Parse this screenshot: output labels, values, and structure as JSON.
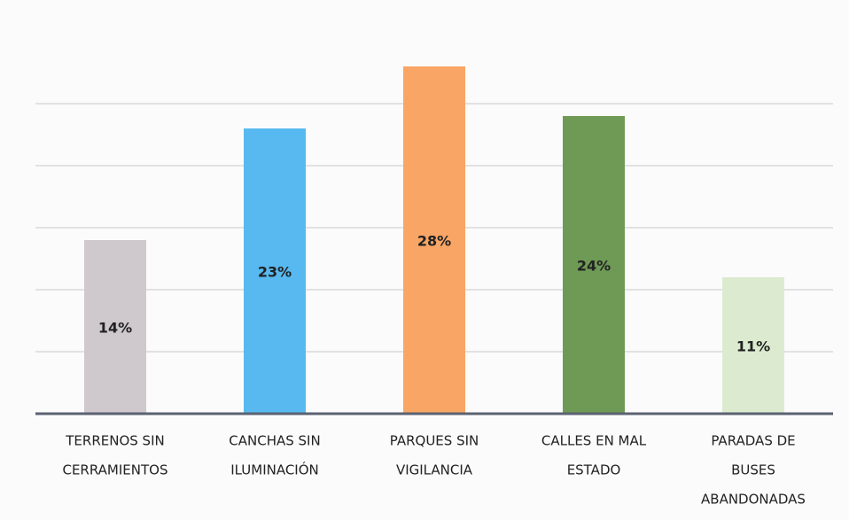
{
  "chart_data": {
    "type": "bar",
    "categories": [
      [
        "TERRENOS SIN",
        "CERRAMIENTOS"
      ],
      [
        "CANCHAS SIN",
        "ILUMINACIÓN"
      ],
      [
        "PARQUES SIN",
        "VIGILANCIA"
      ],
      [
        "CALLES EN MAL",
        "ESTADO"
      ],
      [
        "PARADAS DE",
        "BUSES",
        "ABANDONADAS"
      ]
    ],
    "values": [
      14,
      23,
      28,
      24,
      11
    ],
    "value_labels": [
      "14%",
      "23%",
      "28%",
      "24%",
      "11%"
    ],
    "colors": [
      "#cfc8cd",
      "#57b9ef",
      "#f9a565",
      "#6f9a56",
      "#dcebd0"
    ],
    "ylim": [
      0,
      30
    ],
    "yticks": [
      0,
      5,
      10,
      15,
      20,
      25
    ],
    "grid": true
  }
}
